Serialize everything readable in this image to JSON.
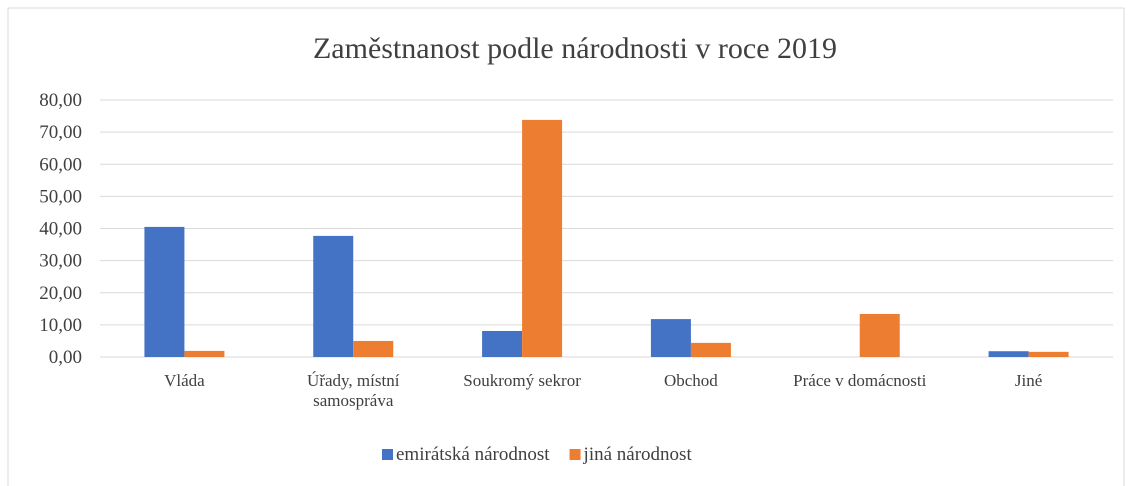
{
  "chart_data": {
    "type": "bar",
    "title": "Zaměstnanost podle národnosti v roce 2019",
    "categories": [
      "Vláda",
      "Úřady, místní samospráva",
      "Soukromý sekror",
      "Obchod",
      "Práce v domácnosti",
      "Jiné"
    ],
    "series": [
      {
        "name": "emirátská národnost",
        "color": "#4472c4",
        "values": [
          40.5,
          37.7,
          8.1,
          11.8,
          0,
          1.8
        ]
      },
      {
        "name": "jiná národnost",
        "color": "#ed7d31",
        "values": [
          1.9,
          5.0,
          73.8,
          4.4,
          13.4,
          1.6
        ]
      }
    ],
    "ylim": [
      0,
      80
    ],
    "yticks": [
      {
        "value": 0,
        "label": "0,00"
      },
      {
        "value": 10,
        "label": "10,00"
      },
      {
        "value": 20,
        "label": "20,00"
      },
      {
        "value": 30,
        "label": "30,00"
      },
      {
        "value": 40,
        "label": "40,00"
      },
      {
        "value": 50,
        "label": "50,00"
      },
      {
        "value": 60,
        "label": "60,00"
      },
      {
        "value": 70,
        "label": "70,00"
      },
      {
        "value": 80,
        "label": "80,00"
      }
    ],
    "grid": true,
    "legend": "bottom"
  }
}
